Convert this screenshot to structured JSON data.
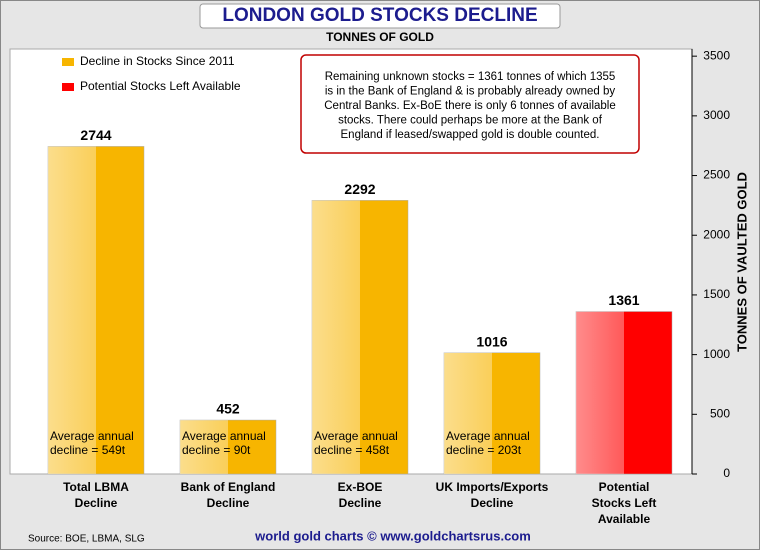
{
  "chart_data": {
    "type": "bar",
    "title": "LONDON GOLD STOCKS DECLINE",
    "subtitle": "TONNES OF GOLD",
    "y_label": "TONNES OF VAULTED GOLD",
    "categories": [
      [
        "Total LBMA",
        "Decline"
      ],
      [
        "Bank of England",
        "Decline"
      ],
      [
        "Ex-BOE",
        "Decline"
      ],
      [
        "UK Imports/Exports",
        "Decline"
      ],
      [
        "Potential",
        "Stocks Left",
        "Available"
      ]
    ],
    "values": [
      2744,
      452,
      2292,
      1016,
      1361
    ],
    "colors": [
      "#f7b500",
      "#f7b500",
      "#f7b500",
      "#f7b500",
      "#ff0000"
    ],
    "bar_notes": [
      [
        "Average annual",
        "decline = 549t"
      ],
      [
        "Average annual",
        "decline = 90t"
      ],
      [
        "Average annual",
        "decline = 458t"
      ],
      [
        "Average annual",
        "decline = 203t"
      ]
    ],
    "legend": [
      {
        "name": "Decline in Stocks Since 2011",
        "color": "#f7b500"
      },
      {
        "name": "Potential Stocks Left Available",
        "color": "#ff0000"
      }
    ],
    "annotation": [
      "Remaining unknown stocks = 1361 tonnes of which 1355",
      "is in the Bank of England & is probably already owned by",
      "Central Banks. Ex-BoE there is only 6 tonnes of available",
      "stocks. There could perhaps be more at the Bank of",
      "England if leased/swapped gold is double counted."
    ],
    "ylim": [
      0,
      3560
    ],
    "yticks": [
      0,
      500,
      1000,
      1500,
      2000,
      2500,
      3000,
      3500
    ],
    "source": "Source: BOE, LBMA, SLG",
    "footer": "world gold charts © www.goldchartsrus.com"
  }
}
